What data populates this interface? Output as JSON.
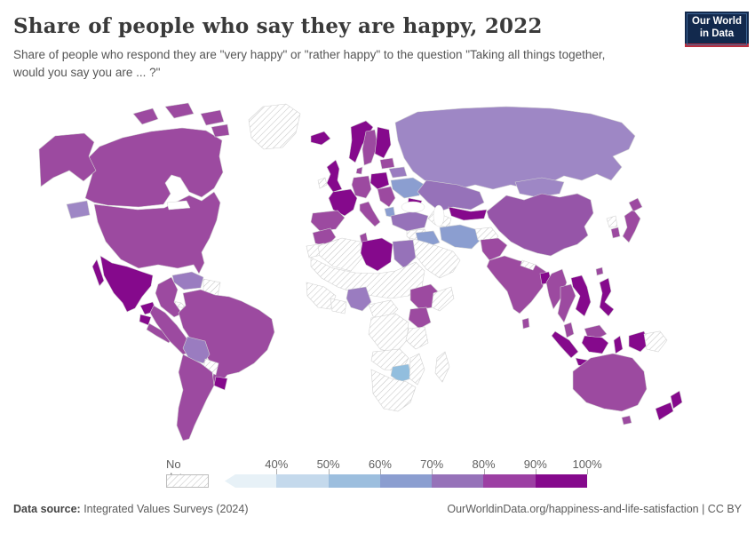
{
  "header": {
    "title": "Share of people who say they are happy, 2022",
    "subtitle": "Share of people who respond they are \"very happy\" or \"rather happy\" to the question \"Taking all things together, would you say you are ... ?\"",
    "logo": {
      "line1": "Our World",
      "line2": "in Data",
      "bg": "#12294d",
      "accent": "#bc2e3e"
    }
  },
  "legend": {
    "no_data_label": "No data",
    "stops": [
      {
        "label": "40%",
        "color": "#e7f1f7"
      },
      {
        "label": "50%",
        "color": "#c4d9ec"
      },
      {
        "label": "60%",
        "color": "#9cbede"
      },
      {
        "label": "70%",
        "color": "#8b9ed0"
      },
      {
        "label": "80%",
        "color": "#9672b9"
      },
      {
        "label": "90%",
        "color": "#9c3fa3"
      },
      {
        "label": "100%",
        "color": "#85098c"
      }
    ]
  },
  "footer": {
    "datasource_label": "Data source:",
    "datasource_value": " Integrated Values Surveys (2024)",
    "rights": "OurWorldinData.org/happiness-and-life-satisfaction | CC BY"
  },
  "chart_data": {
    "type": "heatmap",
    "subtype": "choropleth-world-map",
    "title": "Share of people who say they are happy, 2022",
    "unit": "%",
    "bins": [
      "<40%",
      "40-50%",
      "50-60%",
      "60-70%",
      "70-80%",
      "80-90%",
      "90-100%",
      "No data"
    ],
    "legend_position": "bottom",
    "values_by_region": {
      "Canada": "80-90%",
      "United States": "80-90%",
      "Mexico": "90-100%",
      "Guatemala": "90-100%",
      "Nicaragua/Central America": "80-90%",
      "Greenland": "No data",
      "Cuba": "No data",
      "Dominican Republic": "90-100%",
      "Colombia": "80-90%",
      "Venezuela": "70-80%",
      "Guyana/Suriname": "No data",
      "Brazil": "80-90%",
      "Peru/Ecuador": "80-90%",
      "Bolivia": "70-80%",
      "Paraguay": "No data",
      "Uruguay": "90-100%",
      "Argentina/Chile": "80-90%",
      "Iceland": "90-100%",
      "United Kingdom": "90-100%",
      "Ireland": "No data",
      "Norway": "90-100%",
      "Sweden": "80-90%",
      "Finland": "90-100%",
      "Denmark": "80-90%",
      "Germany": "80-90%",
      "France": "90-100%",
      "Spain/Portugal": "80-90%",
      "Italy": "80-90%",
      "Poland": "90-100%",
      "Balkans": "80-90%",
      "Greece": "60-70%",
      "Ukraine": "60-70%",
      "Belarus": "70-80%",
      "Baltics": "80-90%",
      "Russia": "70-80%",
      "Kazakhstan": "70-80%",
      "Uzbekistan/Kyrgyzstan": "90-100%",
      "Turkmenistan": "No data",
      "Caucasus": "90-100%",
      "Turkey": "70-80%",
      "Levant": "No data",
      "Iraq": "60-70%",
      "Iran": "60-70%",
      "Arabian Peninsula": "No data",
      "Afghanistan": "No data",
      "Pakistan": "80-90%",
      "India": "80-90%",
      "Nepal": "No data",
      "Bangladesh": "90-100%",
      "Sri Lanka": "80-90%",
      "Myanmar": "80-90%",
      "Thailand": "80-90%",
      "Vietnam": "90-100%",
      "Malaysia": "80-90%",
      "Indonesia": "90-100%",
      "Philippines": "90-100%",
      "Papua New Guinea": "No data",
      "Mongolia": "70-80%",
      "China": "80-90%",
      "Taiwan": "80-90%",
      "Japan": "80-90%",
      "South Korea": "80-90%",
      "North Korea": "No data",
      "Morocco": "80-90%",
      "Western Sahara": "No data",
      "Algeria": "No data",
      "Tunisia": "80-90%",
      "Libya": "90-100%",
      "Egypt": "70-80%",
      "Sahel/Sudan": "No data",
      "West Africa": "No data",
      "Nigeria": "70-80%",
      "Ghana/Ivory Coast": "No data",
      "Cameroon/Central Africa": "No data",
      "Ethiopia": "80-90%",
      "Somalia": "No data",
      "Kenya": "80-90%",
      "DR Congo": "No data",
      "Tanzania": "No data",
      "Angola/Zambia": "No data",
      "Zimbabwe": "50-60%",
      "Mozambique": "No data",
      "South Africa": "No data",
      "Madagascar": "No data",
      "Australia": "80-90%",
      "New Zealand": "90-100%"
    }
  },
  "map": {
    "ocean_color": "#ffffff",
    "border_color": "#d2d2d2",
    "countries": {
      "greenland": {
        "label": "Greenland",
        "value": "No data",
        "color": "url(#hatch)"
      },
      "canada": {
        "label": "Canada",
        "value": "80-90%",
        "color": "#9c4aa0"
      },
      "arctic1": {
        "label": "Canada (Arctic)",
        "value": "80-90%",
        "color": "#9c4aa0"
      },
      "arctic2": {
        "label": "Canada (Arctic)",
        "value": "80-90%",
        "color": "#9c4aa0"
      },
      "arctic3": {
        "label": "Canada (Arctic)",
        "value": "80-90%",
        "color": "#9c4aa0"
      },
      "arctic4": {
        "label": "Canada (Arctic)",
        "value": "80-90%",
        "color": "#9c4aa0"
      },
      "alaska": {
        "label": "United States (Alaska)",
        "value": "80-90%",
        "color": "#9c4aa0"
      },
      "usa": {
        "label": "United States",
        "value": "80-90%",
        "color": "#9c4aa0"
      },
      "mexico": {
        "label": "Mexico",
        "value": "90-100%",
        "color": "#85098c"
      },
      "baja": {
        "label": "Mexico (Baja)",
        "value": "90-100%",
        "color": "#85098c"
      },
      "yucatan": {
        "label": "Mexico (Yucatan)",
        "value": "90-100%",
        "color": "#85098c"
      },
      "guatemala": {
        "label": "Guatemala",
        "value": "90-100%",
        "color": "#85098c"
      },
      "centralamerica": {
        "label": "Central America",
        "value": "80-90%",
        "color": "#9c4aa0"
      },
      "cuba": {
        "label": "Cuba",
        "value": "No data",
        "color": "url(#hatch)"
      },
      "hispaniola": {
        "label": "Dominican Republic",
        "value": "90-100%",
        "color": "#85098c"
      },
      "venezuela": {
        "label": "Venezuela",
        "value": "70-80%",
        "color": "#9a7cc0"
      },
      "colombia": {
        "label": "Colombia",
        "value": "80-90%",
        "color": "#9c4aa0"
      },
      "guyana": {
        "label": "Guyana/Suriname",
        "value": "No data",
        "color": "url(#hatch)"
      },
      "brazil": {
        "label": "Brazil",
        "value": "80-90%",
        "color": "#9c4aa0"
      },
      "peru": {
        "label": "Peru/Ecuador",
        "value": "80-90%",
        "color": "#9c4aa0"
      },
      "bolivia": {
        "label": "Bolivia",
        "value": "70-80%",
        "color": "#9a7cc0"
      },
      "paraguay": {
        "label": "Paraguay",
        "value": "No data",
        "color": "url(#hatch)"
      },
      "uruguay": {
        "label": "Uruguay",
        "value": "90-100%",
        "color": "#85098c"
      },
      "argentina": {
        "label": "Argentina/Chile",
        "value": "80-90%",
        "color": "#9c4aa0"
      },
      "iceland": {
        "label": "Iceland",
        "value": "90-100%",
        "color": "#85098c"
      },
      "norway": {
        "label": "Norway",
        "value": "90-100%",
        "color": "#85098c"
      },
      "sweden": {
        "label": "Sweden",
        "value": "80-90%",
        "color": "#9c4aa0"
      },
      "finland": {
        "label": "Finland",
        "value": "90-100%",
        "color": "#85098c"
      },
      "uk": {
        "label": "United Kingdom",
        "value": "90-100%",
        "color": "#85098c"
      },
      "ireland": {
        "label": "Ireland",
        "value": "No data",
        "color": "url(#hatch)"
      },
      "denmark": {
        "label": "Denmark",
        "value": "80-90%",
        "color": "#9c4aa0"
      },
      "germany": {
        "label": "Germany",
        "value": "80-90%",
        "color": "#9c4aa0"
      },
      "france": {
        "label": "France",
        "value": "90-100%",
        "color": "#85098c"
      },
      "spain": {
        "label": "Spain/Portugal",
        "value": "80-90%",
        "color": "#9c4aa0"
      },
      "italy": {
        "label": "Italy",
        "value": "80-90%",
        "color": "#9c4aa0"
      },
      "poland": {
        "label": "Poland",
        "value": "90-100%",
        "color": "#85098c"
      },
      "balkans": {
        "label": "Balkans",
        "value": "80-90%",
        "color": "#9c4aa0"
      },
      "greece": {
        "label": "Greece",
        "value": "60-70%",
        "color": "#8b9ed0"
      },
      "ukraine": {
        "label": "Ukraine",
        "value": "60-70%",
        "color": "#8b9ed0"
      },
      "belarus": {
        "label": "Belarus",
        "value": "70-80%",
        "color": "#9a7cc0"
      },
      "baltics": {
        "label": "Baltics",
        "value": "80-90%",
        "color": "#9c4aa0"
      },
      "russia": {
        "label": "Russia",
        "value": "70-80%",
        "color": "#9e87c5"
      },
      "chukotka": {
        "label": "Russia (far east)",
        "value": "70-80%",
        "color": "#9e87c5"
      },
      "mongolia": {
        "label": "Mongolia",
        "value": "70-80%",
        "color": "#9e87c5"
      },
      "kazakhstan": {
        "label": "Kazakhstan",
        "value": "70-80%",
        "color": "#9672b9"
      },
      "uzbekistan": {
        "label": "Uzbekistan/Kyrgyzstan",
        "value": "90-100%",
        "color": "#85098c"
      },
      "turkmenistan": {
        "label": "Turkmenistan",
        "value": "No data",
        "color": "url(#hatch)"
      },
      "caucasus": {
        "label": "Caucasus",
        "value": "90-100%",
        "color": "#85098c"
      },
      "turkey": {
        "label": "Turkey",
        "value": "70-80%",
        "color": "#9672b9"
      },
      "levant": {
        "label": "Levant",
        "value": "No data",
        "color": "url(#hatch)"
      },
      "iraq": {
        "label": "Iraq",
        "value": "60-70%",
        "color": "#8b9ed0"
      },
      "iran": {
        "label": "Iran",
        "value": "60-70%",
        "color": "#8b9ed0"
      },
      "saudi": {
        "label": "Arabian Peninsula",
        "value": "No data",
        "color": "url(#hatch)"
      },
      "afghanistan": {
        "label": "Afghanistan",
        "value": "No data",
        "color": "url(#hatch)"
      },
      "pakistan": {
        "label": "Pakistan",
        "value": "80-90%",
        "color": "#9c4aa0"
      },
      "india": {
        "label": "India",
        "value": "80-90%",
        "color": "#9c4aa0"
      },
      "nepal": {
        "label": "Nepal",
        "value": "No data",
        "color": "url(#hatch)"
      },
      "bangladesh": {
        "label": "Bangladesh",
        "value": "90-100%",
        "color": "#85098c"
      },
      "srilanka": {
        "label": "Sri Lanka",
        "value": "80-90%",
        "color": "#9c4aa0"
      },
      "china": {
        "label": "China",
        "value": "80-90%",
        "color": "#9655a8"
      },
      "myanmar": {
        "label": "Myanmar",
        "value": "80-90%",
        "color": "#9c4aa0"
      },
      "thailand": {
        "label": "Thailand",
        "value": "80-90%",
        "color": "#9c4aa0"
      },
      "vietnam": {
        "label": "Vietnam",
        "value": "90-100%",
        "color": "#85098c"
      },
      "malaysia": {
        "label": "Malaysia (peninsula)",
        "value": "80-90%",
        "color": "#9c4aa0"
      },
      "sumatra": {
        "label": "Indonesia (Sumatra)",
        "value": "90-100%",
        "color": "#85098c"
      },
      "java": {
        "label": "Indonesia (Java)",
        "value": "90-100%",
        "color": "#85098c"
      },
      "borneomy": {
        "label": "Malaysia (Borneo)",
        "value": "80-90%",
        "color": "#9c4aa0"
      },
      "borneoid": {
        "label": "Indonesia (Borneo)",
        "value": "90-100%",
        "color": "#85098c"
      },
      "sulawesi": {
        "label": "Indonesia (Sulawesi)",
        "value": "90-100%",
        "color": "#85098c"
      },
      "philippines": {
        "label": "Philippines",
        "value": "90-100%",
        "color": "#85098c"
      },
      "westpapua": {
        "label": "Indonesia (Papua)",
        "value": "90-100%",
        "color": "#85098c"
      },
      "png": {
        "label": "Papua New Guinea",
        "value": "No data",
        "color": "url(#hatch)"
      },
      "taiwan": {
        "label": "Taiwan",
        "value": "80-90%",
        "color": "#9c4aa0"
      },
      "japan": {
        "label": "Japan",
        "value": "80-90%",
        "color": "#9c4aa0"
      },
      "hokkaido": {
        "label": "Japan (Hokkaido)",
        "value": "80-90%",
        "color": "#9c4aa0"
      },
      "southkorea": {
        "label": "South Korea",
        "value": "80-90%",
        "color": "#9c4aa0"
      },
      "northkorea": {
        "label": "North Korea",
        "value": "No data",
        "color": "url(#hatch)"
      },
      "morocco": {
        "label": "Morocco",
        "value": "80-90%",
        "color": "#9c4aa0"
      },
      "wsahara": {
        "label": "Western Sahara",
        "value": "No data",
        "color": "url(#hatch)"
      },
      "algeria": {
        "label": "Algeria",
        "value": "No data",
        "color": "url(#hatch)"
      },
      "tunisia": {
        "label": "Tunisia",
        "value": "80-90%",
        "color": "#9c4aa0"
      },
      "libya": {
        "label": "Libya",
        "value": "90-100%",
        "color": "#85098c"
      },
      "egypt": {
        "label": "Egypt",
        "value": "70-80%",
        "color": "#9672b9"
      },
      "sahel": {
        "label": "Sahel/Sudan",
        "value": "No data",
        "color": "url(#hatch)"
      },
      "westafrica": {
        "label": "West Africa",
        "value": "No data",
        "color": "url(#hatch)"
      },
      "nigeria": {
        "label": "Nigeria",
        "value": "70-80%",
        "color": "#9a7cc0"
      },
      "ghana": {
        "label": "Ghana/Ivory Coast",
        "value": "No data",
        "color": "url(#hatch)"
      },
      "cameroon": {
        "label": "Cameroon/C. Africa",
        "value": "No data",
        "color": "url(#hatch)"
      },
      "ethiopia": {
        "label": "Ethiopia",
        "value": "80-90%",
        "color": "#9c4aa0"
      },
      "somalia": {
        "label": "Somalia",
        "value": "No data",
        "color": "url(#hatch)"
      },
      "kenya": {
        "label": "Kenya",
        "value": "80-90%",
        "color": "#9c4aa0"
      },
      "congo": {
        "label": "DR Congo",
        "value": "No data",
        "color": "url(#hatch)"
      },
      "tanzania": {
        "label": "Tanzania",
        "value": "No data",
        "color": "url(#hatch)"
      },
      "angola": {
        "label": "Angola/Zambia",
        "value": "No data",
        "color": "url(#hatch)"
      },
      "zimbabwe": {
        "label": "Zimbabwe",
        "value": "50-60%",
        "color": "#92bede"
      },
      "mozambique": {
        "label": "Mozambique",
        "value": "No data",
        "color": "url(#hatch)"
      },
      "southafrica": {
        "label": "South Africa",
        "value": "No data",
        "color": "url(#hatch)"
      },
      "madagascar": {
        "label": "Madagascar",
        "value": "No data",
        "color": "url(#hatch)"
      },
      "australia": {
        "label": "Australia",
        "value": "80-90%",
        "color": "#9c4aa0"
      },
      "tasmania": {
        "label": "Australia (Tasmania)",
        "value": "80-90%",
        "color": "#9c4aa0"
      },
      "nz_north": {
        "label": "New Zealand (North)",
        "value": "90-100%",
        "color": "#85098c"
      },
      "nz_south": {
        "label": "New Zealand (South)",
        "value": "90-100%",
        "color": "#85098c"
      }
    }
  }
}
